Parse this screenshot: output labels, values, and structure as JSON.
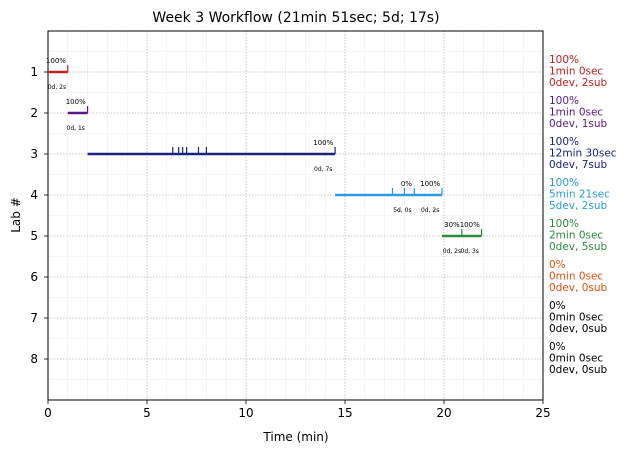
{
  "chart_data": {
    "type": "timeline",
    "title": "Week 3 Workflow (21min 51sec; 5d; 17s)",
    "xlabel": "Time (min)",
    "ylabel": "Lab #",
    "xlim": [
      0,
      25
    ],
    "ylim": [
      9,
      0
    ],
    "x_ticks": [
      "0",
      "5",
      "10",
      "15",
      "20",
      "25"
    ],
    "y_ticks": [
      "1",
      "2",
      "3",
      "4",
      "5",
      "6",
      "7",
      "8"
    ],
    "grid": true,
    "labs": [
      {
        "lab": 1,
        "color": "#c42020",
        "start": 0.0,
        "end": 1.0,
        "ticks": [
          1.0
        ],
        "annotations": [
          {
            "text": "100%",
            "x": 0.4
          }
        ],
        "below": [
          {
            "text": "0d, 2s",
            "x": 0.45
          }
        ],
        "summary": [
          "100%",
          "1min 0sec",
          "0dev, 2sub"
        ]
      },
      {
        "lab": 2,
        "color": "#5a1a8a",
        "start": 1.0,
        "end": 2.0,
        "ticks": [
          2.0
        ],
        "annotations": [
          {
            "text": "100%",
            "x": 1.4
          }
        ],
        "below": [
          {
            "text": "0d, 1s",
            "x": 1.4
          }
        ],
        "summary": [
          "100%",
          "1min 0sec",
          "0dev, 1sub"
        ]
      },
      {
        "lab": 3,
        "color": "#1a237e",
        "start": 2.0,
        "end": 14.5,
        "ticks": [
          6.3,
          6.6,
          6.8,
          7.0,
          7.6,
          8.0,
          14.5
        ],
        "annotations": [
          {
            "text": "100%",
            "x": 13.9
          }
        ],
        "below": [
          {
            "text": "0d, 7s",
            "x": 13.9
          }
        ],
        "summary": [
          "100%",
          "12min 30sec",
          "0dev, 7sub"
        ]
      },
      {
        "lab": 4,
        "color": "#2a9ae0",
        "start": 14.5,
        "end": 19.9,
        "ticks": [
          17.4,
          18.0,
          18.5,
          19.9
        ],
        "annotations": [
          {
            "text": "0%",
            "x": 18.1
          },
          {
            "text": "100%",
            "x": 19.3
          }
        ],
        "below": [
          {
            "text": "5d, 0s",
            "x": 17.9
          },
          {
            "text": "0d, 2s",
            "x": 19.3
          }
        ],
        "summary": [
          "100%",
          "5min 21sec",
          "5dev, 2sub"
        ]
      },
      {
        "lab": 5,
        "color": "#2e8b3e",
        "start": 19.9,
        "end": 21.9,
        "ticks": [
          20.9,
          21.9
        ],
        "annotations": [
          {
            "text": "30%",
            "x": 20.4
          },
          {
            "text": "100%",
            "x": 21.3
          }
        ],
        "below": [
          {
            "text": "0d, 2s",
            "x": 20.4
          },
          {
            "text": "0d, 3s",
            "x": 21.3
          }
        ],
        "summary": [
          "100%",
          "2min 0sec",
          "0dev, 5sub"
        ]
      },
      {
        "lab": 6,
        "color": "#e0520d",
        "start": null,
        "end": null,
        "ticks": [],
        "annotations": [],
        "below": [],
        "summary": [
          "0%",
          "0min 0sec",
          "0dev, 0sub"
        ]
      },
      {
        "lab": 7,
        "color": "#000000",
        "start": null,
        "end": null,
        "ticks": [],
        "annotations": [],
        "below": [],
        "summary": [
          "0%",
          "0min 0sec",
          "0dev, 0sub"
        ]
      },
      {
        "lab": 8,
        "color": "#000000",
        "start": null,
        "end": null,
        "ticks": [],
        "annotations": [],
        "below": [],
        "summary": [
          "0%",
          "0min 0sec",
          "0dev, 0sub"
        ]
      }
    ]
  }
}
